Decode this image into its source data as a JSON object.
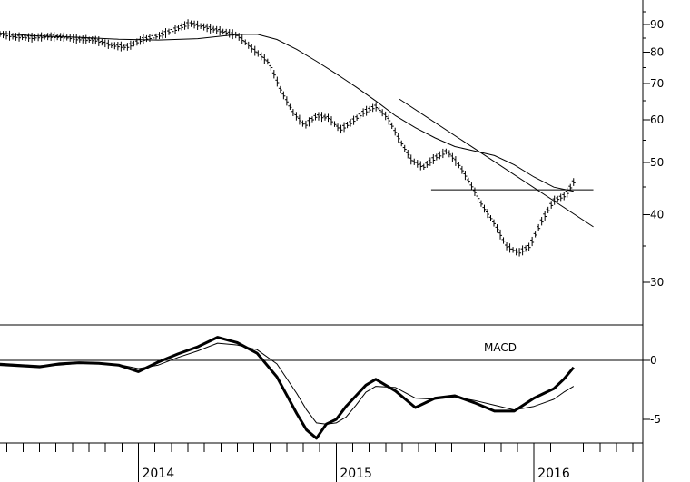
{
  "chart_data": [
    {
      "type": "line",
      "panel": "price",
      "scale": "log",
      "ylim": [
        25,
        100
      ],
      "y_ticks": [
        30,
        40,
        50,
        60,
        70,
        80,
        90
      ],
      "x_range": [
        2013.3,
        2016.55
      ],
      "years": [
        "2014",
        "2015",
        "2016"
      ],
      "year_positions": [
        2014.0,
        2015.0,
        2016.0
      ],
      "series": [
        {
          "role": "price-bars",
          "x": [
            2013.3,
            2013.38,
            2013.46,
            2013.54,
            2013.62,
            2013.7,
            2013.78,
            2013.86,
            2013.94,
            2014.02,
            2014.1,
            2014.18,
            2014.26,
            2014.34,
            2014.42,
            2014.5,
            2014.58,
            2014.66,
            2014.72,
            2014.78,
            2014.84,
            2014.9,
            2014.96,
            2015.02,
            2015.08,
            2015.14,
            2015.2,
            2015.26,
            2015.32,
            2015.38,
            2015.44,
            2015.5,
            2015.56,
            2015.62,
            2015.68,
            2015.74,
            2015.8,
            2015.86,
            2015.92,
            2015.98,
            2016.04,
            2016.1,
            2016.16,
            2016.2
          ],
          "values": [
            86.5,
            85.5,
            85.2,
            85.6,
            85.4,
            84.6,
            84.3,
            82.5,
            81.8,
            84.5,
            85.8,
            88.0,
            90.5,
            89.0,
            87.5,
            86.0,
            81.0,
            76.5,
            68.0,
            62.0,
            58.5,
            61.0,
            60.5,
            57.5,
            59.5,
            62.0,
            63.5,
            60.5,
            55.0,
            50.5,
            49.0,
            51.0,
            52.5,
            49.5,
            45.5,
            41.5,
            38.5,
            35.0,
            34.0,
            35.0,
            39.0,
            42.5,
            43.5,
            46.0
          ]
        },
        {
          "role": "moving-average",
          "x": [
            2013.3,
            2013.5,
            2013.7,
            2013.9,
            2014.1,
            2014.3,
            2014.5,
            2014.6,
            2014.7,
            2014.8,
            2014.9,
            2015.0,
            2015.1,
            2015.2,
            2015.3,
            2015.4,
            2015.5,
            2015.6,
            2015.7,
            2015.8,
            2015.9,
            2016.0,
            2016.1,
            2016.2
          ],
          "values": [
            86.8,
            85.7,
            85.3,
            84.6,
            84.3,
            84.8,
            86.3,
            86.4,
            84.5,
            81.0,
            77.0,
            73.0,
            69.0,
            65.0,
            61.0,
            58.0,
            55.5,
            53.5,
            52.5,
            51.5,
            49.5,
            47.0,
            45.0,
            44.2
          ]
        }
      ],
      "annotations": [
        {
          "type": "trendline",
          "x": [
            2015.32,
            2016.3
          ],
          "values": [
            65.5,
            38.0
          ]
        },
        {
          "type": "horizontal-line",
          "x": [
            2015.48,
            2016.3
          ],
          "values": [
            44.5,
            44.5
          ]
        }
      ]
    },
    {
      "type": "line",
      "panel": "indicator",
      "title": "MACD",
      "ylim": [
        -7,
        3
      ],
      "y_ticks": [
        0,
        -5
      ],
      "y_tick_labels": [
        "0",
        "-5"
      ],
      "series": [
        {
          "role": "macd",
          "x": [
            2013.3,
            2013.4,
            2013.5,
            2013.6,
            2013.7,
            2013.8,
            2013.9,
            2014.0,
            2014.1,
            2014.2,
            2014.3,
            2014.4,
            2014.5,
            2014.6,
            2014.7,
            2014.8,
            2014.85,
            2014.9,
            2014.95,
            2015.0,
            2015.05,
            2015.1,
            2015.15,
            2015.2,
            2015.3,
            2015.4,
            2015.5,
            2015.6,
            2015.7,
            2015.8,
            2015.9,
            2016.0,
            2016.05,
            2016.1,
            2016.15,
            2016.2
          ],
          "values": [
            -0.35,
            -0.45,
            -0.55,
            -0.3,
            -0.2,
            -0.25,
            -0.4,
            -0.95,
            -0.15,
            0.55,
            1.15,
            1.95,
            1.5,
            0.6,
            -1.4,
            -4.5,
            -5.9,
            -6.6,
            -5.4,
            -5.0,
            -3.9,
            -3.0,
            -2.1,
            -1.6,
            -2.6,
            -4.0,
            -3.2,
            -3.0,
            -3.6,
            -4.3,
            -4.3,
            -3.2,
            -2.8,
            -2.4,
            -1.6,
            -0.6
          ]
        },
        {
          "role": "signal",
          "x": [
            2013.3,
            2013.4,
            2013.5,
            2013.6,
            2013.7,
            2013.8,
            2013.9,
            2014.0,
            2014.1,
            2014.2,
            2014.3,
            2014.4,
            2014.5,
            2014.6,
            2014.7,
            2014.8,
            2014.85,
            2014.9,
            2014.95,
            2015.0,
            2015.05,
            2015.1,
            2015.15,
            2015.2,
            2015.3,
            2015.4,
            2015.5,
            2015.6,
            2015.7,
            2015.8,
            2015.9,
            2016.0,
            2016.05,
            2016.1,
            2016.15,
            2016.2
          ],
          "values": [
            -0.25,
            -0.35,
            -0.45,
            -0.4,
            -0.25,
            -0.25,
            -0.35,
            -0.7,
            -0.4,
            0.25,
            0.8,
            1.45,
            1.3,
            0.9,
            -0.3,
            -2.8,
            -4.2,
            -5.3,
            -5.4,
            -5.3,
            -4.8,
            -3.8,
            -2.7,
            -2.2,
            -2.3,
            -3.2,
            -3.3,
            -3.1,
            -3.4,
            -3.8,
            -4.2,
            -3.9,
            -3.6,
            -3.3,
            -2.7,
            -2.2
          ]
        }
      ]
    }
  ]
}
